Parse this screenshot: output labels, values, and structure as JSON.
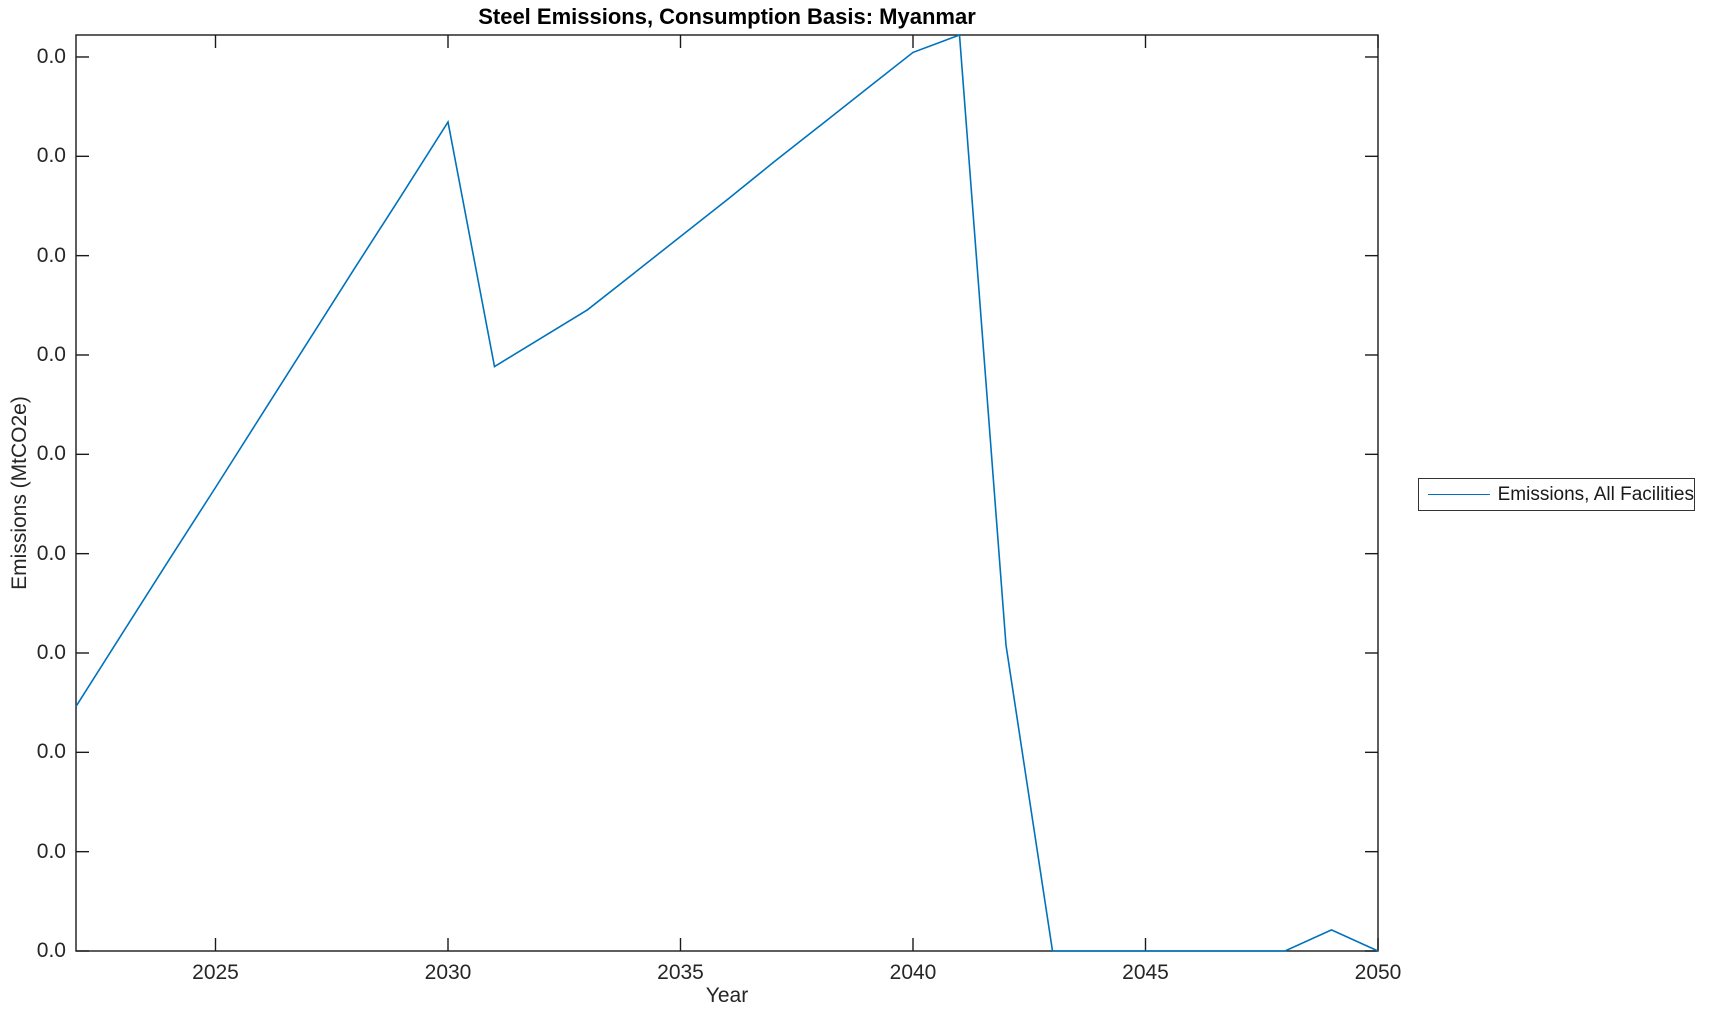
{
  "figure": {
    "title": "Steel Emissions, Consumption Basis: Myanmar",
    "xlabel": "Year",
    "ylabel": "Emissions (MtCO2e)"
  },
  "legend": {
    "entries": [
      {
        "label": "Emissions, All Facilities",
        "color": "#0072BD"
      }
    ],
    "position": "outside-right"
  },
  "colors": {
    "line_blue": "#0072BD",
    "axis_line": "#1a1a1a",
    "tick_text": "#262626",
    "background": "#ffffff"
  },
  "chart_data": {
    "type": "line",
    "title": "Steel Emissions, Consumption Basis: Myanmar",
    "xlabel": "Year",
    "ylabel": "Emissions (MtCO2e)",
    "xlim": [
      2022,
      2050
    ],
    "ylim": [
      0,
      1.0
    ],
    "y_note": "all y-axis tick labels display 0.0; series values are normalized to full axis height",
    "grid": false,
    "legend_position": "right-outside",
    "xtick_values": [
      2025,
      2030,
      2035,
      2040,
      2045,
      2050
    ],
    "xtick_labels": [
      "2025",
      "2030",
      "2035",
      "2040",
      "2045",
      "2050"
    ],
    "ytick_labels": [
      "0.0",
      "0.0",
      "0.0",
      "0.0",
      "0.0",
      "0.0",
      "0.0",
      "0.0",
      "0.0",
      "0.0"
    ],
    "ytick_top_fraction": 0.976,
    "series": [
      {
        "name": "Emissions, All Facilities",
        "color": "#0072BD",
        "x": [
          2022,
          2023,
          2024,
          2025,
          2026,
          2027,
          2028,
          2029,
          2030,
          2031,
          2032,
          2033,
          2034,
          2035,
          2036,
          2037,
          2038,
          2039,
          2040,
          2041,
          2042,
          2043,
          2044,
          2045,
          2046,
          2047,
          2048,
          2049,
          2050
        ],
        "y": [
          0.267,
          0.347,
          0.427,
          0.506,
          0.586,
          0.666,
          0.746,
          0.825,
          0.905,
          0.638,
          0.669,
          0.7,
          0.74,
          0.78,
          0.82,
          0.861,
          0.901,
          0.941,
          0.981,
          1.0,
          0.334,
          0.0,
          0.0,
          0.0,
          0.0,
          0.0,
          0.0,
          0.023,
          0.0
        ]
      }
    ]
  }
}
